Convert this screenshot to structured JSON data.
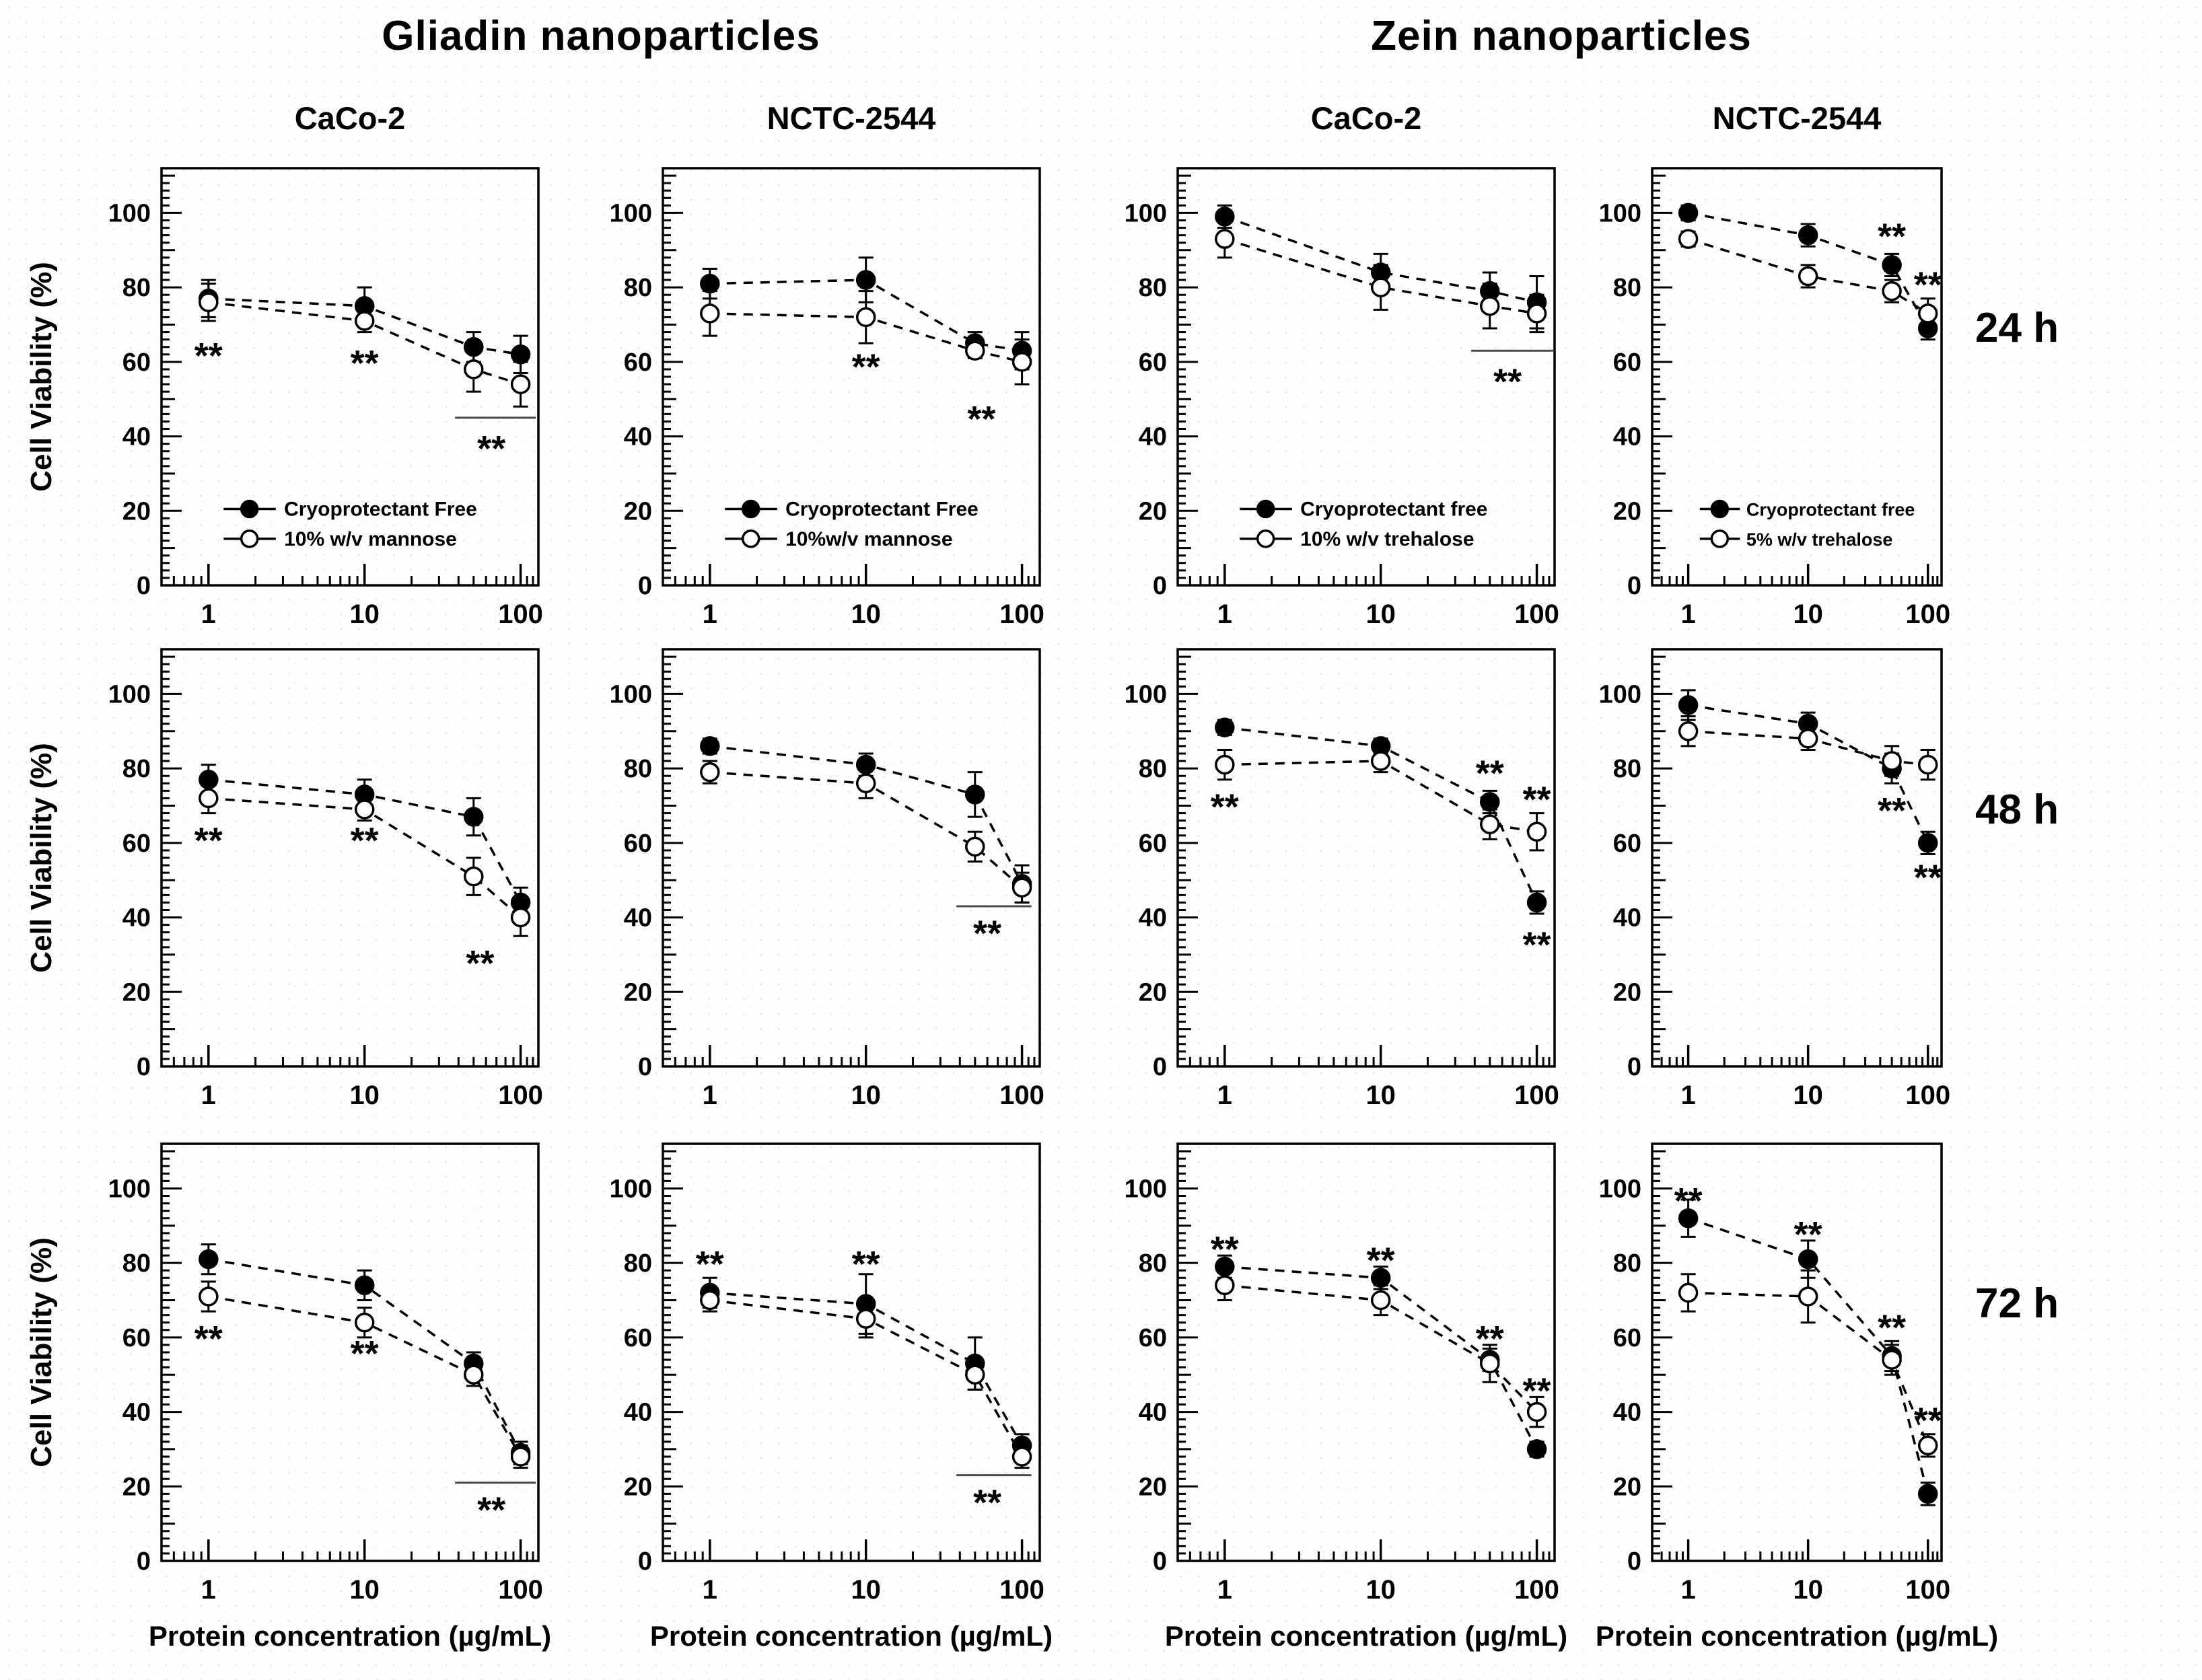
{
  "colors": {
    "ink": "#000000",
    "background": "#fffefd",
    "marker_filled": "#000000",
    "marker_open_fill": "#ffffff",
    "significance_line": "#4a4a4a"
  },
  "titles": {
    "left_group": "Gliadin nanoparticles",
    "right_group": "Zein nanoparticles"
  },
  "column_titles": [
    "CaCo-2",
    "NCTC-2544",
    "CaCo-2",
    "NCTC-2544"
  ],
  "row_labels": [
    "24 h",
    "48 h",
    "72 h"
  ],
  "axis": {
    "ylabel": "Cell Viability (%)",
    "xlabel": "Protein concentration (µg/mL)",
    "x_scale": "log",
    "xlim": [
      0.5,
      130
    ],
    "ylim": [
      0,
      112
    ],
    "x_ticks": [
      1,
      10,
      100
    ],
    "y_ticks": [
      0,
      20,
      40,
      60,
      80,
      100
    ],
    "x_minor_ticks": [
      0.6,
      0.7,
      0.8,
      0.9,
      2,
      3,
      4,
      5,
      6,
      7,
      8,
      9,
      20,
      30,
      40,
      50,
      60,
      70,
      80,
      90,
      110,
      120
    ]
  },
  "chart_data": [
    {
      "id": "gliadin-caco2-24h",
      "type": "line",
      "group": "Gliadin nanoparticles",
      "cell_line": "CaCo-2",
      "time": "24 h",
      "x": [
        1,
        10,
        50,
        100
      ],
      "series": [
        {
          "name": "Cryoprotectant Free",
          "marker": "filled",
          "values": [
            77,
            75,
            64,
            62
          ],
          "errors": [
            5,
            5,
            4,
            5
          ]
        },
        {
          "name": "10% w/v mannose",
          "marker": "open",
          "values": [
            76,
            71,
            58,
            54
          ],
          "errors": [
            5,
            3,
            6,
            6
          ]
        }
      ],
      "legend": true,
      "annotations": [
        {
          "x": 1,
          "y": 62,
          "text": "**"
        },
        {
          "x": 10,
          "y": 60,
          "text": "**"
        },
        {
          "x": 65,
          "y": 37,
          "text": "**"
        }
      ],
      "sig_lines": [
        {
          "x1": 38,
          "x2": 125,
          "y": 45
        }
      ]
    },
    {
      "id": "gliadin-nctc2544-24h",
      "type": "line",
      "group": "Gliadin nanoparticles",
      "cell_line": "NCTC-2544",
      "time": "24 h",
      "x": [
        1,
        10,
        50,
        100
      ],
      "series": [
        {
          "name": "Cryoprotectant Free",
          "marker": "filled",
          "values": [
            81,
            82,
            65,
            63
          ],
          "errors": [
            4,
            6,
            3,
            5
          ]
        },
        {
          "name": "10%w/v mannose",
          "marker": "open",
          "values": [
            73,
            72,
            63,
            60
          ],
          "errors": [
            6,
            7,
            2,
            6
          ]
        }
      ],
      "legend": true,
      "annotations": [
        {
          "x": 10,
          "y": 59,
          "text": "**"
        },
        {
          "x": 55,
          "y": 45,
          "text": "**"
        }
      ],
      "sig_lines": []
    },
    {
      "id": "zein-caco2-24h",
      "type": "line",
      "group": "Zein nanoparticles",
      "cell_line": "CaCo-2",
      "time": "24 h",
      "x": [
        1,
        10,
        50,
        100
      ],
      "series": [
        {
          "name": "Cryoprotectant free",
          "marker": "filled",
          "values": [
            99,
            84,
            79,
            76
          ],
          "errors": [
            3,
            5,
            5,
            7
          ]
        },
        {
          "name": "10% w/v trehalose",
          "marker": "open",
          "values": [
            93,
            80,
            75,
            73
          ],
          "errors": [
            5,
            6,
            6,
            5
          ]
        }
      ],
      "legend": true,
      "annotations": [
        {
          "x": 65,
          "y": 55,
          "text": "**"
        }
      ],
      "sig_lines": [
        {
          "x1": 38,
          "x2": 129,
          "y": 63
        }
      ]
    },
    {
      "id": "zein-nctc2544-24h",
      "type": "line",
      "group": "Zein nanoparticles",
      "cell_line": "NCTC-2544",
      "time": "24 h",
      "x": [
        1,
        10,
        50,
        100
      ],
      "series": [
        {
          "name": "Cryoprotectant free",
          "marker": "filled",
          "values": [
            100,
            94,
            86,
            69
          ],
          "errors": [
            2,
            3,
            3,
            3
          ]
        },
        {
          "name": "5% w/v trehalose",
          "marker": "open",
          "values": [
            93,
            83,
            79,
            73
          ],
          "errors": [
            2,
            3,
            3,
            4
          ]
        }
      ],
      "legend": true,
      "annotations": [
        {
          "x": 50,
          "y": 94,
          "text": "**"
        },
        {
          "x": 100,
          "y": 81,
          "text": "**"
        }
      ],
      "sig_lines": []
    },
    {
      "id": "gliadin-caco2-48h",
      "type": "line",
      "group": "Gliadin nanoparticles",
      "cell_line": "CaCo-2",
      "time": "48 h",
      "x": [
        1,
        10,
        50,
        100
      ],
      "series": [
        {
          "name": "Cryoprotectant Free",
          "marker": "filled",
          "values": [
            77,
            73,
            67,
            44
          ],
          "errors": [
            4,
            4,
            5,
            4
          ]
        },
        {
          "name": "10% w/v mannose",
          "marker": "open",
          "values": [
            72,
            69,
            51,
            40
          ],
          "errors": [
            4,
            3,
            5,
            5
          ]
        }
      ],
      "legend": false,
      "annotations": [
        {
          "x": 1,
          "y": 61,
          "text": "**"
        },
        {
          "x": 10,
          "y": 61,
          "text": "**"
        },
        {
          "x": 55,
          "y": 28,
          "text": "**"
        }
      ],
      "sig_lines": []
    },
    {
      "id": "gliadin-nctc2544-48h",
      "type": "line",
      "group": "Gliadin nanoparticles",
      "cell_line": "NCTC-2544",
      "time": "48 h",
      "x": [
        1,
        10,
        50,
        100
      ],
      "series": [
        {
          "name": "Cryoprotectant Free",
          "marker": "filled",
          "values": [
            86,
            81,
            73,
            49
          ],
          "errors": [
            2,
            3,
            6,
            5
          ]
        },
        {
          "name": "10%w/v mannose",
          "marker": "open",
          "values": [
            79,
            76,
            59,
            48
          ],
          "errors": [
            3,
            4,
            4,
            4
          ]
        }
      ],
      "legend": false,
      "annotations": [
        {
          "x": 60,
          "y": 36,
          "text": "**"
        }
      ],
      "sig_lines": [
        {
          "x1": 38,
          "x2": 115,
          "y": 43
        }
      ]
    },
    {
      "id": "zein-caco2-48h",
      "type": "line",
      "group": "Zein nanoparticles",
      "cell_line": "CaCo-2",
      "time": "48 h",
      "x": [
        1,
        10,
        50,
        100
      ],
      "series": [
        {
          "name": "Cryoprotectant free",
          "marker": "filled",
          "values": [
            91,
            86,
            71,
            44
          ],
          "errors": [
            2,
            2,
            3,
            3
          ]
        },
        {
          "name": "10% w/v trehalose",
          "marker": "open",
          "values": [
            81,
            82,
            65,
            63
          ],
          "errors": [
            4,
            3,
            4,
            5
          ]
        }
      ],
      "legend": false,
      "annotations": [
        {
          "x": 1,
          "y": 70,
          "text": "**"
        },
        {
          "x": 50,
          "y": 79,
          "text": "**"
        },
        {
          "x": 100,
          "y": 72,
          "text": "**"
        },
        {
          "x": 100,
          "y": 33,
          "text": "**"
        }
      ],
      "sig_lines": []
    },
    {
      "id": "zein-nctc2544-48h",
      "type": "line",
      "group": "Zein nanoparticles",
      "cell_line": "NCTC-2544",
      "time": "48 h",
      "x": [
        1,
        10,
        50,
        100
      ],
      "series": [
        {
          "name": "Cryoprotectant free",
          "marker": "filled",
          "values": [
            97,
            92,
            80,
            60
          ],
          "errors": [
            4,
            3,
            4,
            3
          ]
        },
        {
          "name": "5% w/v trehalose",
          "marker": "open",
          "values": [
            90,
            88,
            82,
            81
          ],
          "errors": [
            4,
            3,
            4,
            4
          ]
        }
      ],
      "legend": false,
      "annotations": [
        {
          "x": 50,
          "y": 69,
          "text": "**"
        },
        {
          "x": 100,
          "y": 51,
          "text": "**"
        }
      ],
      "sig_lines": []
    },
    {
      "id": "gliadin-caco2-72h",
      "type": "line",
      "group": "Gliadin nanoparticles",
      "cell_line": "CaCo-2",
      "time": "72 h",
      "x": [
        1,
        10,
        50,
        100
      ],
      "series": [
        {
          "name": "Cryoprotectant Free",
          "marker": "filled",
          "values": [
            81,
            74,
            53,
            29
          ],
          "errors": [
            4,
            4,
            3,
            3
          ]
        },
        {
          "name": "10% w/v mannose",
          "marker": "open",
          "values": [
            71,
            64,
            50,
            28
          ],
          "errors": [
            4,
            4,
            3,
            3
          ]
        }
      ],
      "legend": false,
      "annotations": [
        {
          "x": 1,
          "y": 60,
          "text": "**"
        },
        {
          "x": 10,
          "y": 56,
          "text": "**"
        },
        {
          "x": 65,
          "y": 14,
          "text": "**"
        }
      ],
      "sig_lines": [
        {
          "x1": 38,
          "x2": 125,
          "y": 21
        }
      ]
    },
    {
      "id": "gliadin-nctc2544-72h",
      "type": "line",
      "group": "Gliadin nanoparticles",
      "cell_line": "NCTC-2544",
      "time": "72 h",
      "x": [
        1,
        10,
        50,
        100
      ],
      "series": [
        {
          "name": "Cryoprotectant Free",
          "marker": "filled",
          "values": [
            72,
            69,
            53,
            31
          ],
          "errors": [
            4,
            8,
            7,
            3
          ]
        },
        {
          "name": "10%w/v mannose",
          "marker": "open",
          "values": [
            70,
            65,
            50,
            28
          ],
          "errors": [
            3,
            5,
            4,
            3
          ]
        }
      ],
      "legend": false,
      "annotations": [
        {
          "x": 1,
          "y": 80,
          "text": "**"
        },
        {
          "x": 10,
          "y": 80,
          "text": "**"
        },
        {
          "x": 60,
          "y": 16,
          "text": "**"
        }
      ],
      "sig_lines": [
        {
          "x1": 38,
          "x2": 115,
          "y": 23
        }
      ]
    },
    {
      "id": "zein-caco2-72h",
      "type": "line",
      "group": "Zein nanoparticles",
      "cell_line": "CaCo-2",
      "time": "72 h",
      "x": [
        1,
        10,
        50,
        100
      ],
      "series": [
        {
          "name": "Cryoprotectant free",
          "marker": "filled",
          "values": [
            79,
            76,
            54,
            30
          ],
          "errors": [
            3,
            3,
            3,
            2
          ]
        },
        {
          "name": "10% w/v trehalose",
          "marker": "open",
          "values": [
            74,
            70,
            53,
            40
          ],
          "errors": [
            4,
            4,
            5,
            4
          ]
        }
      ],
      "legend": false,
      "annotations": [
        {
          "x": 1,
          "y": 84,
          "text": "**"
        },
        {
          "x": 10,
          "y": 81,
          "text": "**"
        },
        {
          "x": 50,
          "y": 60,
          "text": "**"
        },
        {
          "x": 100,
          "y": 46,
          "text": "**"
        }
      ],
      "sig_lines": []
    },
    {
      "id": "zein-nctc2544-72h",
      "type": "line",
      "group": "Zein nanoparticles",
      "cell_line": "NCTC-2544",
      "time": "72 h",
      "x": [
        1,
        10,
        50,
        100
      ],
      "series": [
        {
          "name": "Cryoprotectant free",
          "marker": "filled",
          "values": [
            92,
            81,
            55,
            18
          ],
          "errors": [
            5,
            5,
            4,
            3
          ]
        },
        {
          "name": "5% w/v trehalose",
          "marker": "open",
          "values": [
            72,
            71,
            54,
            31
          ],
          "errors": [
            5,
            7,
            4,
            3
          ]
        }
      ],
      "legend": false,
      "annotations": [
        {
          "x": 1,
          "y": 97,
          "text": "**"
        },
        {
          "x": 10,
          "y": 88,
          "text": "**"
        },
        {
          "x": 50,
          "y": 63,
          "text": "**"
        },
        {
          "x": 100,
          "y": 38,
          "text": "**"
        }
      ],
      "sig_lines": []
    }
  ]
}
